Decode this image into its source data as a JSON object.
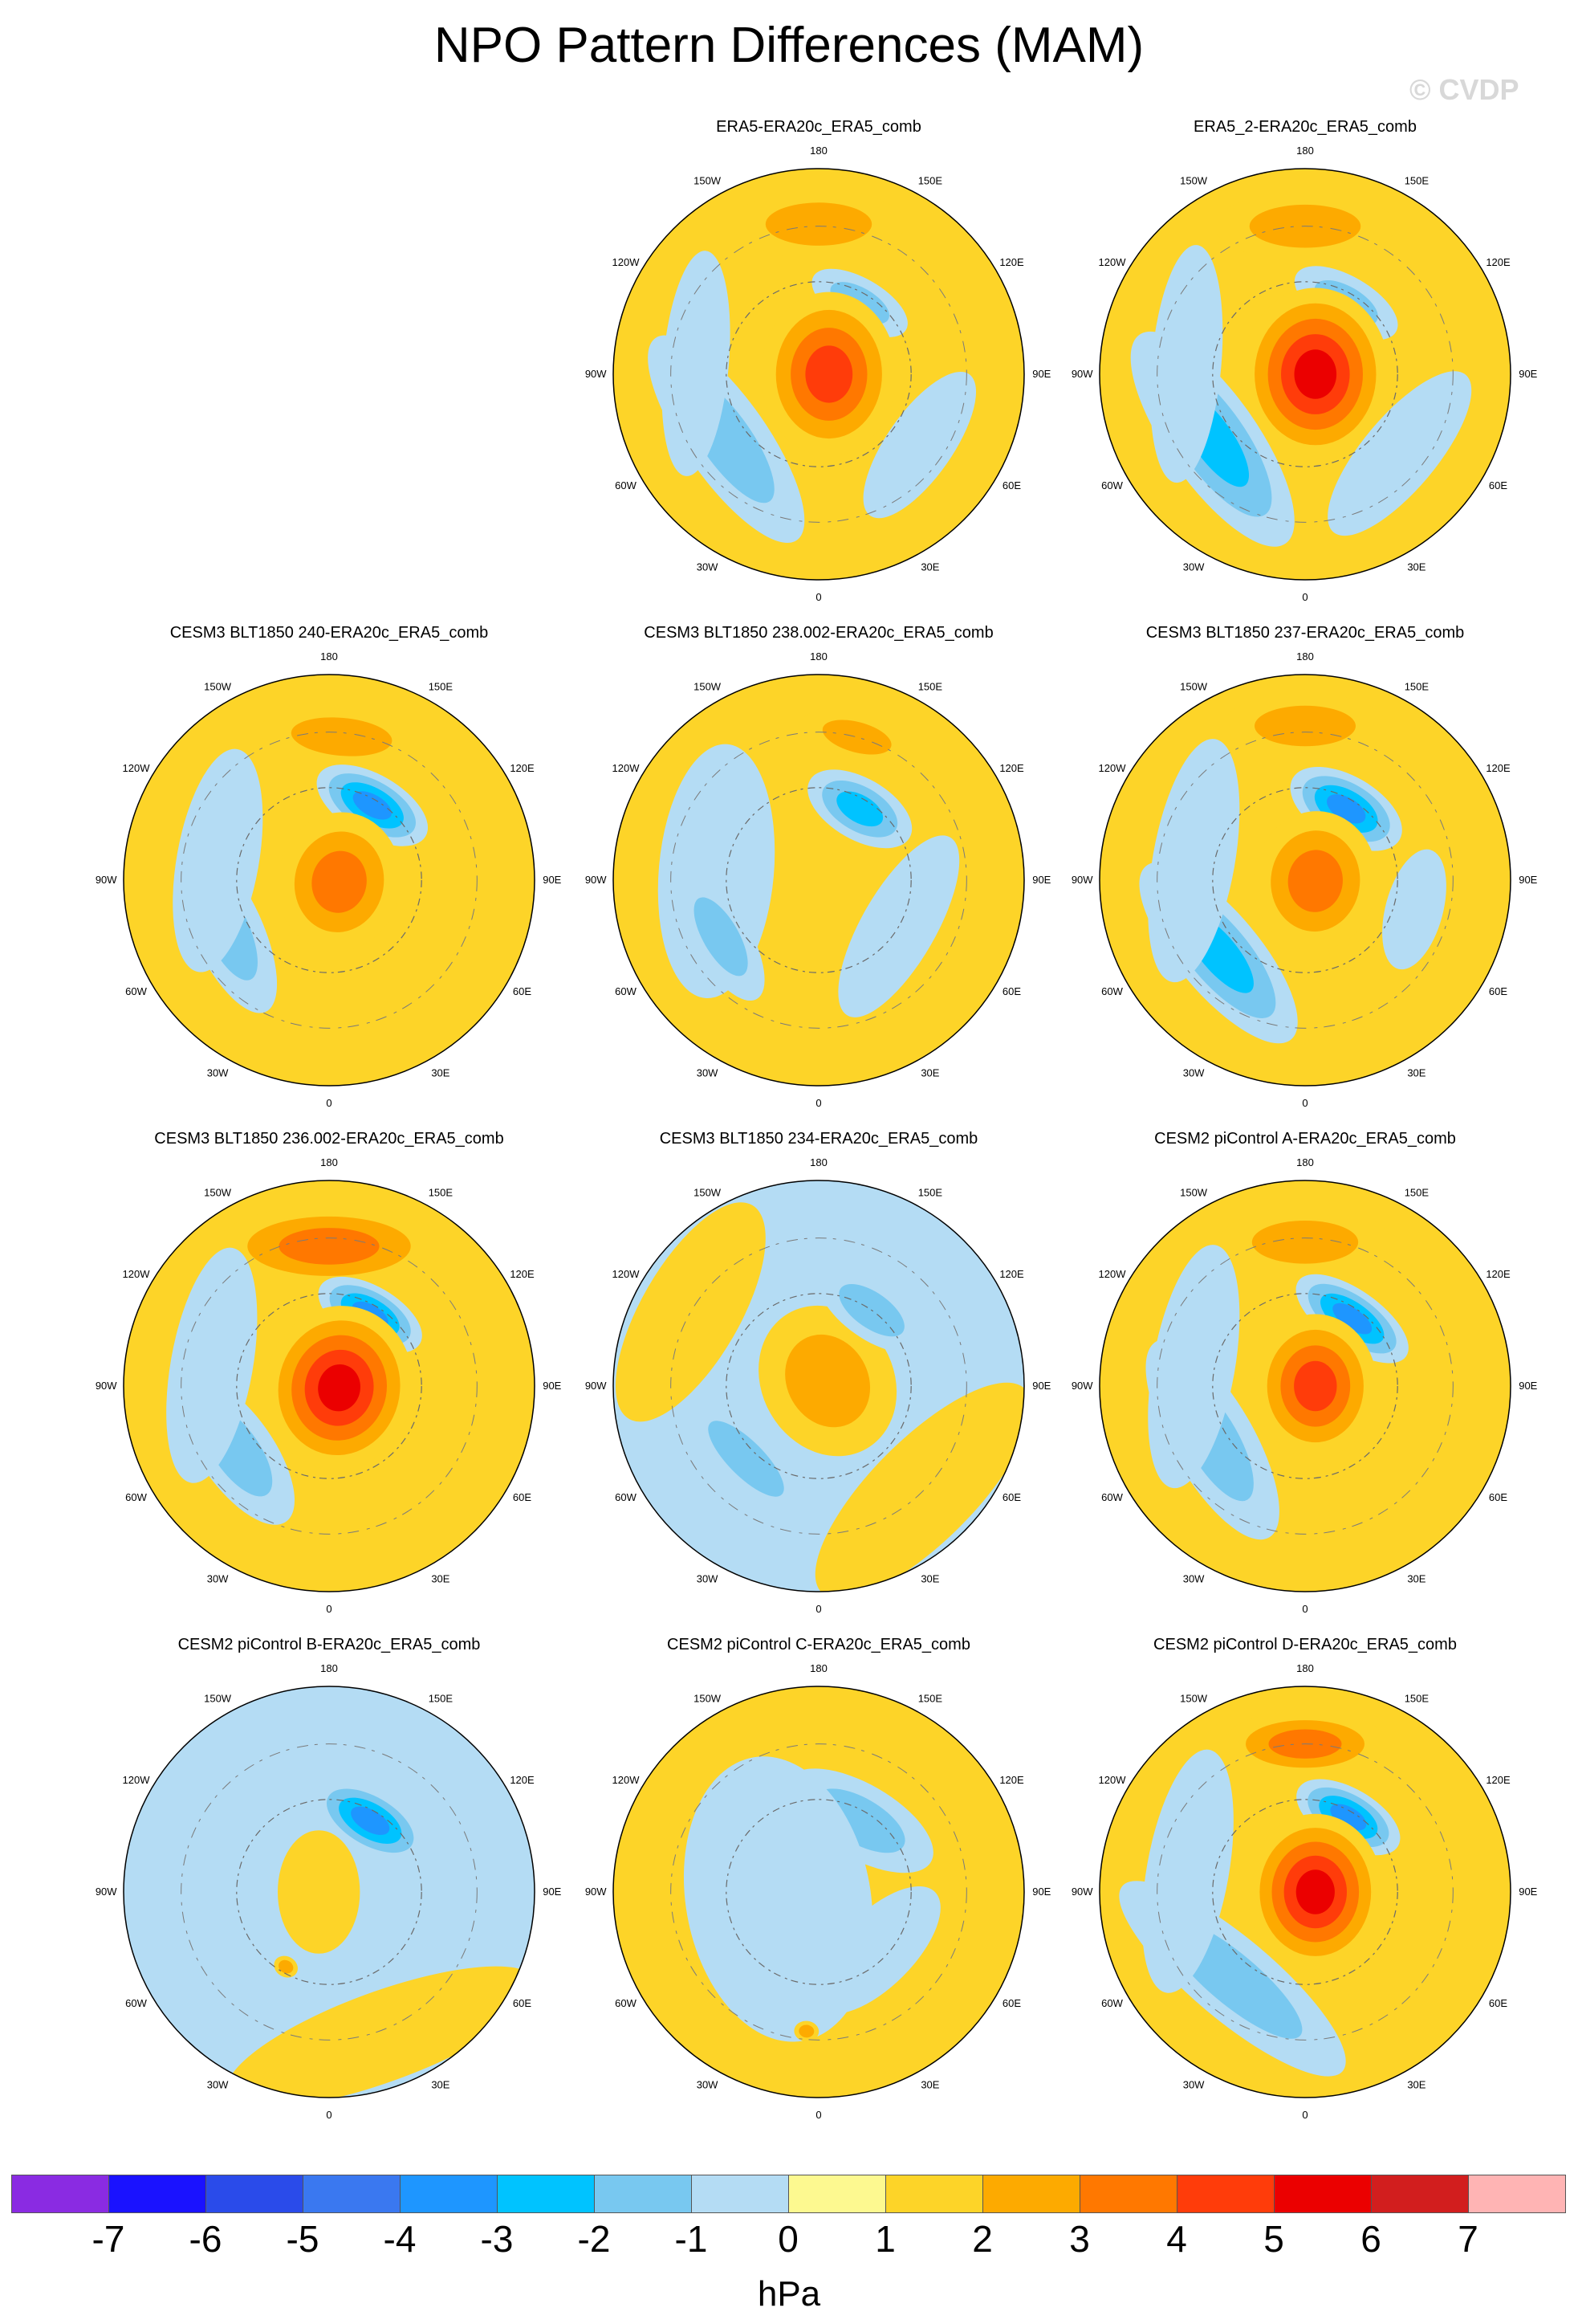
{
  "title": "NPO Pattern Differences (MAM)",
  "watermark": "© CVDP",
  "chart_data": {
    "type": "heatmap",
    "projection": "north-polar-stereographic",
    "lon_labels": [
      "180",
      "150E",
      "120E",
      "90E",
      "60E",
      "30E",
      "0",
      "30W",
      "60W",
      "90W",
      "120W",
      "150W"
    ],
    "colorbar": {
      "colors": [
        "#8a2be2",
        "#1a12ff",
        "#2a4bea",
        "#3a78f0",
        "#1e96ff",
        "#00c3ff",
        "#78c8f0",
        "#b4dcf4",
        "#fdf990",
        "#fdd428",
        "#fdaa00",
        "#ff7800",
        "#ff3c0a",
        "#eb0000",
        "#d21e1e",
        "#ffb4b4"
      ],
      "ticks": [
        "-7",
        "-6",
        "-5",
        "-4",
        "-3",
        "-2",
        "-1",
        "0",
        "1",
        "2",
        "3",
        "4",
        "5",
        "6",
        "7"
      ],
      "units": "hPa"
    },
    "panels": [
      {
        "title": "ERA5-ERA20c_ERA5_comb",
        "row": 0,
        "col": 1,
        "background": 1,
        "features": [
          {
            "lon": 180,
            "r": 0.73,
            "a": 0.42,
            "b": 0.17,
            "peak": 2
          },
          {
            "lon": 150,
            "r": 0.4,
            "a": 0.26,
            "b": 0.12,
            "peak": -2
          },
          {
            "lon": 90,
            "r": 0.05,
            "a": 0.4,
            "b": 0.33,
            "peak": 4
          },
          {
            "lon": -55,
            "r": 0.55,
            "a": 0.6,
            "b": 0.2,
            "peak": -2
          },
          {
            "lon": -95,
            "r": 0.6,
            "a": 0.55,
            "b": 0.16,
            "peak": -1
          },
          {
            "lon": 55,
            "r": 0.6,
            "a": 0.42,
            "b": 0.16,
            "peak": -1
          }
        ]
      },
      {
        "title": "ERA5_2-ERA20c_ERA5_comb",
        "row": 0,
        "col": 2,
        "background": 1,
        "features": [
          {
            "lon": 180,
            "r": 0.72,
            "a": 0.44,
            "b": 0.17,
            "peak": 2
          },
          {
            "lon": 150,
            "r": 0.4,
            "a": 0.28,
            "b": 0.13,
            "peak": -2
          },
          {
            "lon": 90,
            "r": 0.05,
            "a": 0.42,
            "b": 0.36,
            "peak": 5
          },
          {
            "lon": -55,
            "r": 0.55,
            "a": 0.62,
            "b": 0.22,
            "peak": -3
          },
          {
            "lon": -95,
            "r": 0.58,
            "a": 0.58,
            "b": 0.17,
            "peak": -1
          },
          {
            "lon": 50,
            "r": 0.6,
            "a": 0.5,
            "b": 0.18,
            "peak": -1
          }
        ]
      },
      {
        "title": "CESM3 BLT1850 240-ERA20c_ERA5_comb",
        "row": 1,
        "col": 0,
        "background": 1,
        "features": [
          {
            "lon": 175,
            "r": 0.7,
            "a": 0.4,
            "b": 0.15,
            "peak": 2
          },
          {
            "lon": 150,
            "r": 0.42,
            "a": 0.3,
            "b": 0.15,
            "peak": -4
          },
          {
            "lon": 80,
            "r": 0.05,
            "a": 0.34,
            "b": 0.3,
            "peak": 3
          },
          {
            "lon": -65,
            "r": 0.55,
            "a": 0.45,
            "b": 0.17,
            "peak": -2
          },
          {
            "lon": -100,
            "r": 0.55,
            "a": 0.55,
            "b": 0.2,
            "peak": -1
          }
        ]
      },
      {
        "title": "CESM3 BLT1850 238.002-ERA20c_ERA5_comb",
        "row": 1,
        "col": 1,
        "background": 1,
        "features": [
          {
            "lon": 165,
            "r": 0.72,
            "a": 0.28,
            "b": 0.12,
            "peak": 2
          },
          {
            "lon": 150,
            "r": 0.4,
            "a": 0.28,
            "b": 0.15,
            "peak": -3
          },
          {
            "lon": -95,
            "r": 0.5,
            "a": 0.62,
            "b": 0.28,
            "peak": -1
          },
          {
            "lon": -60,
            "r": 0.55,
            "a": 0.35,
            "b": 0.14,
            "peak": -2
          },
          {
            "lon": 60,
            "r": 0.45,
            "a": 0.5,
            "b": 0.18,
            "peak": -1
          }
        ]
      },
      {
        "title": "CESM3 BLT1850 237-ERA20c_ERA5_comb",
        "row": 1,
        "col": 2,
        "background": 1,
        "features": [
          {
            "lon": 180,
            "r": 0.75,
            "a": 0.4,
            "b": 0.16,
            "peak": 2
          },
          {
            "lon": 150,
            "r": 0.4,
            "a": 0.3,
            "b": 0.16,
            "peak": -4
          },
          {
            "lon": 85,
            "r": 0.05,
            "a": 0.34,
            "b": 0.3,
            "peak": 3
          },
          {
            "lon": -50,
            "r": 0.55,
            "a": 0.55,
            "b": 0.2,
            "peak": -3
          },
          {
            "lon": -100,
            "r": 0.55,
            "a": 0.6,
            "b": 0.2,
            "peak": -1
          },
          {
            "lon": 75,
            "r": 0.55,
            "a": 0.3,
            "b": 0.14,
            "peak": -1
          }
        ]
      },
      {
        "title": "CESM3 BLT1850 236.002-ERA20c_ERA5_comb",
        "row": 2,
        "col": 0,
        "background": 1,
        "features": [
          {
            "lon": 180,
            "r": 0.68,
            "a": 0.55,
            "b": 0.2,
            "peak": 3
          },
          {
            "lon": 150,
            "r": 0.4,
            "a": 0.28,
            "b": 0.14,
            "peak": -4
          },
          {
            "lon": 80,
            "r": 0.05,
            "a": 0.4,
            "b": 0.36,
            "peak": 5
          },
          {
            "lon": -55,
            "r": 0.55,
            "a": 0.42,
            "b": 0.18,
            "peak": -2
          },
          {
            "lon": -100,
            "r": 0.58,
            "a": 0.58,
            "b": 0.2,
            "peak": -1
          }
        ]
      },
      {
        "title": "CESM3 BLT1850 234-ERA20c_ERA5_comb",
        "row": 2,
        "col": 1,
        "background": -1,
        "features": [
          {
            "lon": 120,
            "r": 0.05,
            "a": 0.38,
            "b": 0.32,
            "peak": 2
          },
          {
            "lon": 145,
            "r": 0.45,
            "a": 0.3,
            "b": 0.14,
            "peak": -2
          },
          {
            "lon": -45,
            "r": 0.5,
            "a": 0.4,
            "b": 0.14,
            "peak": -2
          },
          {
            "lon": 45,
            "r": 0.72,
            "a": 0.7,
            "b": 0.25,
            "peak": 1
          },
          {
            "lon": -120,
            "r": 0.72,
            "a": 0.6,
            "b": 0.24,
            "peak": 1
          }
        ]
      },
      {
        "title": "CESM2 piControl A-ERA20c_ERA5_comb",
        "row": 2,
        "col": 2,
        "background": 1,
        "features": [
          {
            "lon": 180,
            "r": 0.7,
            "a": 0.42,
            "b": 0.17,
            "peak": 2
          },
          {
            "lon": 145,
            "r": 0.4,
            "a": 0.32,
            "b": 0.14,
            "peak": -4
          },
          {
            "lon": 90,
            "r": 0.05,
            "a": 0.35,
            "b": 0.3,
            "peak": 4
          },
          {
            "lon": -60,
            "r": 0.52,
            "a": 0.55,
            "b": 0.2,
            "peak": -2
          },
          {
            "lon": -100,
            "r": 0.55,
            "a": 0.6,
            "b": 0.2,
            "peak": -1
          }
        ]
      },
      {
        "title": "CESM2 piControl B-ERA20c_ERA5_comb",
        "row": 3,
        "col": 0,
        "background": -1,
        "features": [
          {
            "lon": 150,
            "r": 0.4,
            "a": 0.3,
            "b": 0.15,
            "peak": -4
          },
          {
            "lon": -90,
            "r": 0.05,
            "a": 0.3,
            "b": 0.2,
            "peak": 1
          },
          {
            "lon": 20,
            "r": 0.75,
            "a": 0.8,
            "b": 0.22,
            "peak": 1
          },
          {
            "lon": -30,
            "r": 0.42,
            "a": 0.06,
            "b": 0.05,
            "peak": 2
          }
        ]
      },
      {
        "title": "CESM2 piControl C-ERA20c_ERA5_comb",
        "row": 3,
        "col": 1,
        "background": 1,
        "features": [
          {
            "lon": 150,
            "r": 0.4,
            "a": 0.4,
            "b": 0.18,
            "peak": -2
          },
          {
            "lon": -80,
            "r": 0.2,
            "a": 0.7,
            "b": 0.45,
            "peak": -1
          },
          {
            "lon": 45,
            "r": 0.4,
            "a": 0.4,
            "b": 0.18,
            "peak": -1
          },
          {
            "lon": -5,
            "r": 0.68,
            "a": 0.06,
            "b": 0.05,
            "peak": 2
          }
        ]
      },
      {
        "title": "CESM2 piControl D-ERA20c_ERA5_comb",
        "row": 3,
        "col": 2,
        "background": 1,
        "features": [
          {
            "lon": 180,
            "r": 0.72,
            "a": 0.4,
            "b": 0.16,
            "peak": 3
          },
          {
            "lon": 150,
            "r": 0.42,
            "a": 0.28,
            "b": 0.14,
            "peak": -4
          },
          {
            "lon": 90,
            "r": 0.05,
            "a": 0.38,
            "b": 0.33,
            "peak": 5
          },
          {
            "lon": -40,
            "r": 0.55,
            "a": 0.7,
            "b": 0.2,
            "peak": -2
          },
          {
            "lon": -100,
            "r": 0.58,
            "a": 0.6,
            "b": 0.2,
            "peak": -1
          }
        ]
      }
    ]
  }
}
